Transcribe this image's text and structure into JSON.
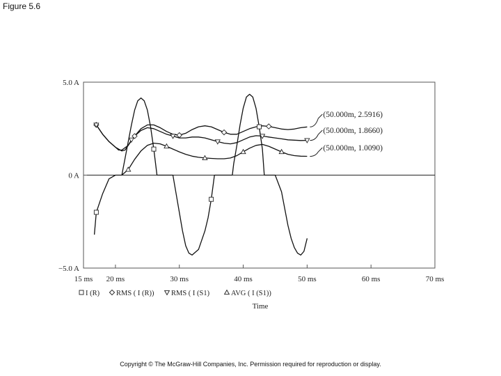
{
  "figure_label": "Figure 5.6",
  "copyright": "Copyright © The McGraw-Hill Companies, Inc. Permission required for reproduction or display.",
  "chart_data": {
    "type": "line",
    "title": "",
    "xlabel": "Time",
    "ylabel": "",
    "xlim": [
      15,
      70
    ],
    "ylim": [
      -5,
      5
    ],
    "x_ticks": [
      {
        "value": 15,
        "label": "15 ms"
      },
      {
        "value": 20,
        "label": "20 ms"
      },
      {
        "value": 30,
        "label": "30 ms"
      },
      {
        "value": 40,
        "label": "40 ms"
      },
      {
        "value": 50,
        "label": "50 ms"
      },
      {
        "value": 60,
        "label": "60 ms"
      },
      {
        "value": 70,
        "label": "70 ms"
      }
    ],
    "y_ticks": [
      {
        "value": 5,
        "label": "5.0 A"
      },
      {
        "value": 0,
        "label": "0 A"
      },
      {
        "value": -5,
        "label": "−5.0 A"
      }
    ],
    "legend_position": "bottom",
    "series": [
      {
        "name": "I (R)",
        "marker": "square",
        "x": [
          16.7,
          17.0,
          18.0,
          19.0,
          20.0,
          21.0,
          21.5,
          22.0,
          22.5,
          23.0,
          23.5,
          24.0,
          24.5,
          25.0,
          25.5,
          26.0,
          26.5,
          27.0,
          28.0,
          29.0,
          29.5,
          30.0,
          30.5,
          31.0,
          31.5,
          32.0,
          33.0,
          34.0,
          34.5,
          35.0,
          35.5,
          36.0,
          37.0,
          38.0,
          38.3,
          38.5,
          39.0,
          39.5,
          40.0,
          40.5,
          41.0,
          41.5,
          42.0,
          42.5,
          43.0,
          43.3,
          44.0,
          45.0,
          46.0,
          46.5,
          47.0,
          47.5,
          48.0,
          48.5,
          49.0,
          49.5,
          50.0
        ],
        "y": [
          -3.2,
          -2.0,
          -1.0,
          -0.2,
          0.0,
          0.0,
          0.9,
          1.8,
          2.7,
          3.5,
          4.0,
          4.15,
          4.0,
          3.5,
          2.6,
          1.4,
          0.0,
          0.0,
          0.0,
          0.0,
          -1.0,
          -2.0,
          -3.0,
          -3.8,
          -4.2,
          -4.3,
          -4.0,
          -3.0,
          -2.3,
          -1.3,
          0.0,
          0.0,
          0.0,
          0.0,
          0.0,
          0.6,
          1.6,
          2.7,
          3.6,
          4.2,
          4.35,
          4.2,
          3.6,
          2.6,
          1.4,
          0.0,
          0.0,
          0.0,
          -0.9,
          -1.8,
          -2.7,
          -3.4,
          -3.9,
          -4.2,
          -4.3,
          -4.1,
          -3.4
        ]
      },
      {
        "name": "RMS ( I (R))",
        "marker": "diamond",
        "x": [
          16.7,
          17.0,
          18.0,
          19.0,
          20.0,
          20.5,
          21.0,
          22.0,
          23.0,
          24.0,
          25.0,
          26.0,
          27.0,
          28.0,
          29.0,
          30.0,
          31.0,
          32.0,
          33.0,
          34.0,
          35.0,
          36.0,
          37.0,
          38.0,
          39.0,
          40.0,
          41.0,
          42.0,
          43.0,
          44.0,
          45.0,
          46.0,
          47.0,
          48.0,
          49.0,
          50.0
        ],
        "y": [
          2.8,
          2.7,
          2.2,
          1.8,
          1.5,
          1.35,
          1.35,
          1.6,
          2.1,
          2.5,
          2.7,
          2.7,
          2.55,
          2.35,
          2.2,
          2.15,
          2.25,
          2.45,
          2.6,
          2.65,
          2.6,
          2.45,
          2.3,
          2.2,
          2.2,
          2.35,
          2.5,
          2.6,
          2.65,
          2.62,
          2.55,
          2.48,
          2.45,
          2.48,
          2.55,
          2.59
        ]
      },
      {
        "name": "RMS ( I (S1)",
        "marker": "down-triangle",
        "x": [
          16.7,
          17.0,
          18.0,
          19.0,
          20.0,
          21.0,
          21.5,
          22.0,
          22.5,
          23.0,
          24.0,
          25.0,
          26.0,
          27.0,
          28.0,
          29.0,
          30.0,
          31.0,
          32.0,
          33.0,
          34.0,
          35.0,
          36.0,
          37.0,
          38.0,
          39.0,
          40.0,
          41.0,
          42.0,
          43.0,
          44.0,
          45.0,
          46.0,
          47.0,
          48.0,
          49.0,
          50.0
        ],
        "y": [
          2.8,
          2.7,
          2.2,
          1.8,
          1.5,
          1.3,
          1.35,
          1.6,
          1.9,
          2.1,
          2.4,
          2.55,
          2.5,
          2.35,
          2.2,
          2.1,
          2.0,
          2.0,
          2.05,
          2.05,
          2.0,
          1.9,
          1.8,
          1.72,
          1.68,
          1.75,
          1.9,
          2.05,
          2.12,
          2.1,
          2.05,
          2.0,
          1.95,
          1.9,
          1.88,
          1.86,
          1.87
        ]
      },
      {
        "name": "AVG ( I (S1))",
        "marker": "triangle",
        "x": [
          21.0,
          22.0,
          23.0,
          24.0,
          25.0,
          26.0,
          27.0,
          28.0,
          29.0,
          30.0,
          31.0,
          32.0,
          33.0,
          34.0,
          35.0,
          36.0,
          37.0,
          38.0,
          39.0,
          40.0,
          41.0,
          42.0,
          43.0,
          44.0,
          45.0,
          46.0,
          47.0,
          48.0,
          49.0,
          50.0
        ],
        "y": [
          0.0,
          0.3,
          0.85,
          1.3,
          1.6,
          1.72,
          1.68,
          1.55,
          1.4,
          1.25,
          1.12,
          1.02,
          0.96,
          0.92,
          0.9,
          0.88,
          0.88,
          0.92,
          1.05,
          1.25,
          1.45,
          1.6,
          1.65,
          1.55,
          1.4,
          1.25,
          1.12,
          1.05,
          1.02,
          1.01
        ]
      }
    ],
    "annotations": [
      {
        "text": "(50.000m, 2.5916)",
        "points_to": {
          "x": 50,
          "y": 2.5916
        }
      },
      {
        "text": "(50.000m, 1.8660)",
        "points_to": {
          "x": 50,
          "y": 1.866
        }
      },
      {
        "text": "(50.000m, 1.0090)",
        "points_to": {
          "x": 50,
          "y": 1.009
        }
      }
    ]
  }
}
